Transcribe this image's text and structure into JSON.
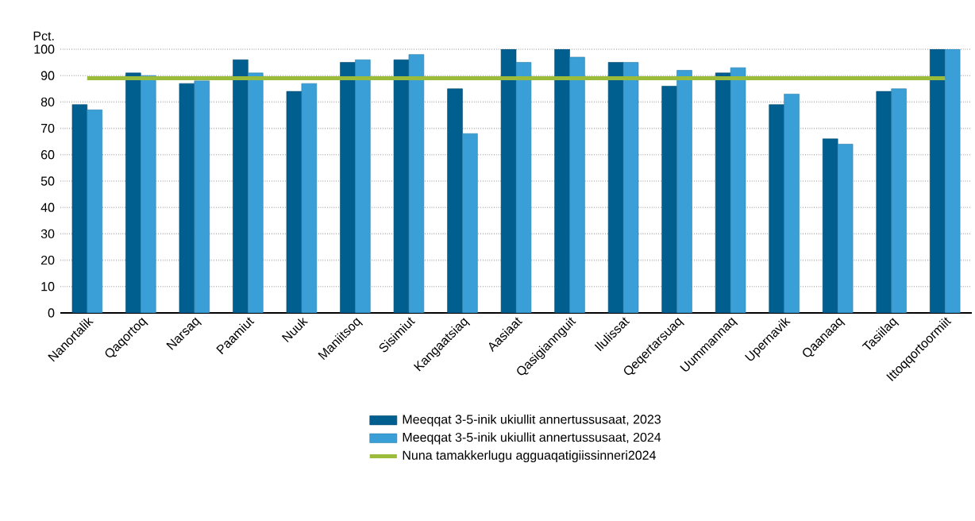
{
  "chart_data": {
    "type": "bar",
    "ylabel": "Pct.",
    "categories": [
      "Nanortalik",
      "Qaqortoq",
      "Narsaq",
      "Paamiut",
      "Nuuk",
      "Maniitsoq",
      "Sisimiut",
      "Kangaatsiaq",
      "Aasiaat",
      "Qasigiannguit",
      "Ilulissat",
      "Qeqertarsuaq",
      "Uummannaq",
      "Upernavik",
      "Qaanaaq",
      "Tasiilaq",
      "Ittoqqortoormiit"
    ],
    "series": [
      {
        "name": "Meeqqat 3-5-inik ukiullit annertussusaat, 2023",
        "color": "#005f8f",
        "values": [
          79,
          91,
          87,
          96,
          84,
          95,
          96,
          85,
          100,
          100,
          95,
          86,
          91,
          79,
          66,
          84,
          100
        ]
      },
      {
        "name": "Meeqqat 3-5-inik ukiullit annertussusaat, 2024",
        "color": "#3a9fd6",
        "values": [
          77,
          90,
          88,
          91,
          87,
          96,
          98,
          68,
          95,
          97,
          95,
          92,
          93,
          83,
          64,
          85,
          100
        ]
      },
      {
        "name": "Nuna tamakkerlugu agguaqatigiissinneri2024",
        "color": "#9bbb3b",
        "type": "line",
        "values": [
          89,
          89,
          89,
          89,
          89,
          89,
          89,
          89,
          89,
          89,
          89,
          89,
          89,
          89,
          89,
          89,
          89
        ]
      }
    ],
    "ylim": [
      0,
      100
    ],
    "yticks": [
      0,
      10,
      20,
      30,
      40,
      50,
      60,
      70,
      80,
      90,
      100
    ],
    "grid": "y",
    "legend": "bottom",
    "marker": "none"
  }
}
